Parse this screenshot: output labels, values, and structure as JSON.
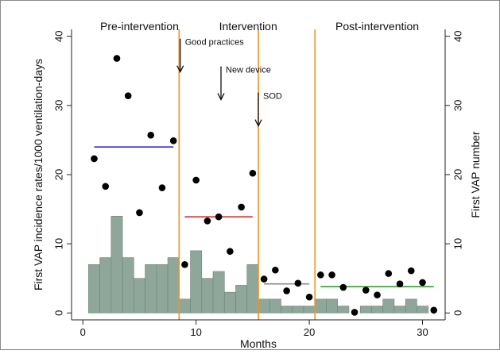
{
  "chart_data": {
    "type": "bar",
    "xlabel": "Months",
    "ylabel_left": "First VAP incidence rates/1000 ventilation-days",
    "ylabel_right": "First VAP number",
    "xlim": [
      -1,
      32
    ],
    "ylim": [
      -1,
      41
    ],
    "x_ticks": [
      0,
      10,
      20,
      30
    ],
    "y_ticks": [
      0,
      10,
      20,
      30,
      40
    ],
    "grid": false,
    "phases": [
      {
        "label": "Pre-intervention",
        "x_center": 5
      },
      {
        "label": "Intervention",
        "x_center": 14.6
      },
      {
        "label": "Post-intervention",
        "x_center": 26
      }
    ],
    "phase_lines": [
      8.5,
      15.5,
      20.5
    ],
    "annotations": [
      {
        "text": "Good practices",
        "x": 8.6,
        "y": 39.2
      },
      {
        "text": "New device",
        "x": 12.2,
        "y": 35.2
      },
      {
        "text": "SOD",
        "x": 15.5,
        "y": 31.4
      }
    ],
    "bars": {
      "name": "First VAP number",
      "x": [
        1,
        2,
        3,
        4,
        5,
        6,
        7,
        8,
        9,
        10,
        11,
        12,
        13,
        14,
        15,
        16,
        17,
        18,
        19,
        20,
        21,
        22,
        23,
        24,
        25,
        26,
        27,
        28,
        29,
        30,
        31
      ],
      "values": [
        7,
        8,
        14,
        8,
        5,
        7,
        7,
        8,
        2,
        9,
        5,
        6,
        3,
        4,
        7,
        2,
        2,
        1,
        1,
        1,
        2,
        2,
        1,
        0,
        1,
        1,
        2,
        1,
        2,
        1,
        0
      ]
    },
    "series": [
      {
        "name": "First VAP incidence rate",
        "type": "scatter",
        "x": [
          1,
          2,
          3,
          4,
          5,
          6,
          7,
          8,
          9,
          10,
          11,
          12,
          13,
          14,
          15,
          16,
          17,
          18,
          19,
          20,
          21,
          22,
          23,
          24,
          25,
          26,
          27,
          28,
          29,
          30,
          31
        ],
        "y": [
          22.3,
          18.3,
          36.8,
          31.4,
          14.5,
          25.7,
          18.1,
          24.9,
          7.0,
          19.2,
          13.3,
          13.9,
          8.9,
          15.3,
          20.2,
          4.9,
          6.2,
          3.2,
          4.3,
          2.3,
          5.5,
          5.5,
          3.7,
          0.1,
          3.3,
          2.6,
          5.7,
          4.2,
          6.1,
          4.4,
          0.4
        ]
      },
      {
        "name": "Pre-intervention mean",
        "type": "segment",
        "color": "#2b2bd6",
        "x": [
          1,
          8
        ],
        "y": [
          24,
          24
        ]
      },
      {
        "name": "Intervention mean",
        "type": "segment",
        "color": "#d62b2b",
        "x": [
          9,
          15
        ],
        "y": [
          13.9,
          13.9
        ]
      },
      {
        "name": "Transition mean",
        "type": "segment",
        "color": "#8a8a8a",
        "x": [
          16,
          20
        ],
        "y": [
          4.2,
          4.2
        ]
      },
      {
        "name": "Post-intervention mean",
        "type": "segment",
        "color": "#2f9e2f",
        "x": [
          21,
          31
        ],
        "y": [
          3.8,
          3.8
        ]
      }
    ],
    "colors": {
      "bar_fill": "#8fa79a",
      "bar_stroke": "#6b8478",
      "phase_line": "#f0931e",
      "point": "#000000",
      "axis": "#222222"
    }
  }
}
